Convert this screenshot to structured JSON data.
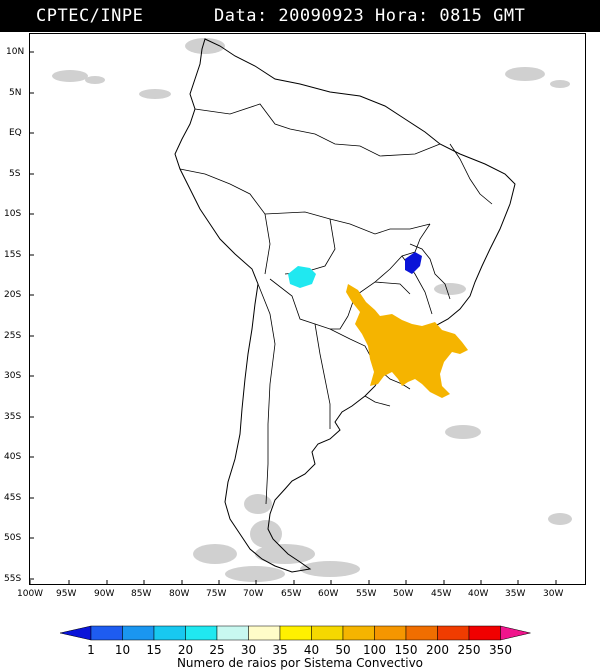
{
  "header": {
    "org": "CPTEC/INPE",
    "datetime": "Data: 20090923 Hora: 0815 GMT"
  },
  "map": {
    "lat_labels": [
      "10N",
      "5N",
      "EQ",
      "5S",
      "10S",
      "15S",
      "20S",
      "25S",
      "30S",
      "35S",
      "40S",
      "45S",
      "50S",
      "55S"
    ],
    "lon_labels": [
      "100W",
      "95W",
      "90W",
      "85W",
      "80W",
      "75W",
      "70W",
      "65W",
      "60W",
      "55W",
      "50W",
      "45W",
      "40W",
      "35W",
      "30W"
    ],
    "colors": {
      "cloud_gray": "#c8c8c8",
      "cell_cyan": "#20e8f0",
      "cell_blue": "#0a14d8",
      "cell_orange": "#f5b400"
    }
  },
  "legend": {
    "ticks": [
      "1",
      "10",
      "15",
      "20",
      "25",
      "30",
      "35",
      "40",
      "50",
      "100",
      "150",
      "200",
      "250",
      "350"
    ],
    "colors": [
      "#0a14d8",
      "#1e5cf0",
      "#1a96f0",
      "#18c8f0",
      "#20e8f0",
      "#c8f8f0",
      "#fffcc8",
      "#fff000",
      "#f5d800",
      "#f5b400",
      "#f59600",
      "#f06e00",
      "#f03c00",
      "#f00000",
      "#f0148c"
    ],
    "title": "Numero de raios por Sistema Convectivo"
  }
}
